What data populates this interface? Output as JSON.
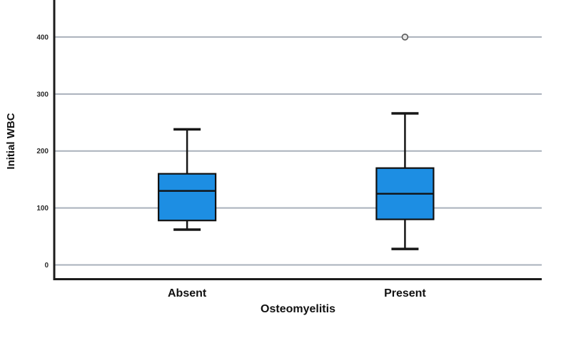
{
  "chart_data": {
    "type": "boxplot",
    "title": "",
    "xlabel": "Osteomyelitis",
    "ylabel": "Initial WBC",
    "categories": [
      "Absent",
      "Present"
    ],
    "series": [
      {
        "category": "Absent",
        "whisker_low": 62,
        "q1": 78,
        "median": 130,
        "q3": 160,
        "whisker_high": 238,
        "outliers": []
      },
      {
        "category": "Present",
        "whisker_low": 28,
        "q1": 80,
        "median": 125,
        "q3": 170,
        "whisker_high": 266,
        "outliers": [
          400
        ]
      }
    ],
    "yticks": [
      0,
      100,
      200,
      300,
      400
    ],
    "ylim": [
      -25,
      465
    ],
    "grid": true,
    "legend": "none",
    "colors": {
      "box_fill": "#1d8ee3",
      "box_stroke": "#111111",
      "median_stroke": "#111111",
      "whisker_stroke": "#161616",
      "grid_color": "#a9b1bb",
      "axis_color": "#1c1c1c",
      "outlier_stroke": "#595959",
      "outlier_fill": "#e6e6e6"
    }
  }
}
